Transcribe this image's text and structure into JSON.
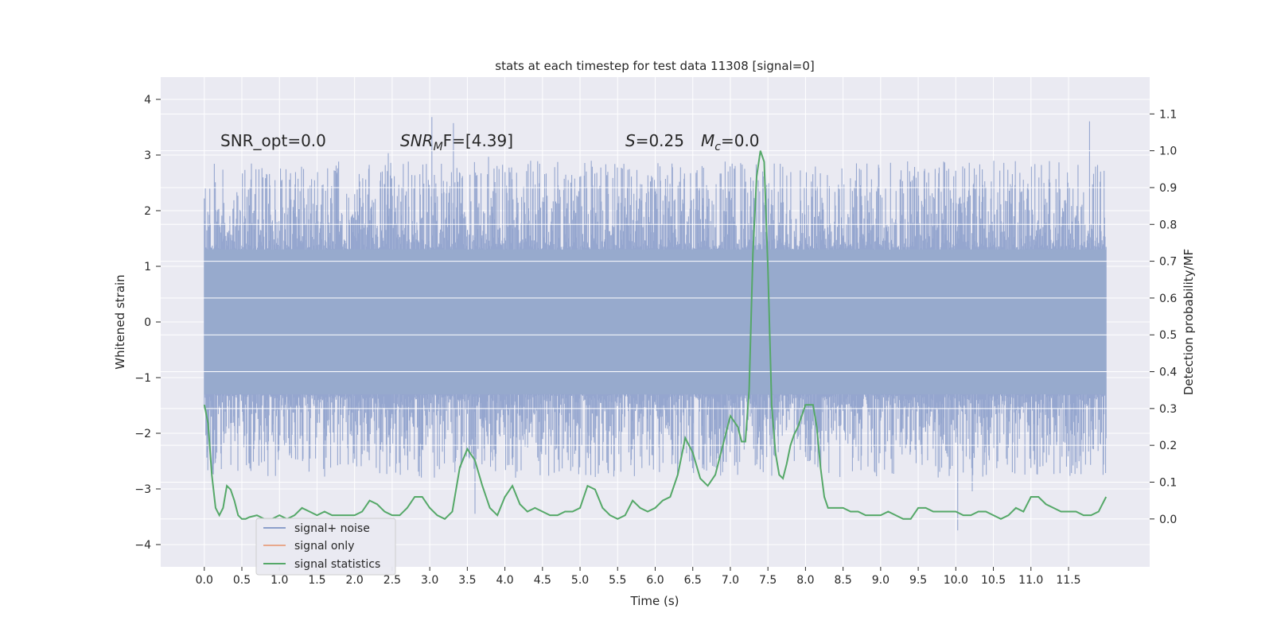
{
  "chart_data": {
    "type": "line",
    "title": "stats at each timestep for test data 11308 [signal=0]",
    "xlabel": "Time (s)",
    "ylabel": "Whitened strain",
    "y2label": "Detection probability/MF",
    "xlim": [
      -0.58,
      12.58
    ],
    "ylim": [
      -4.4,
      4.4
    ],
    "y2lim": [
      -0.13,
      1.2
    ],
    "x_ticks": [
      "0.0",
      "0.5",
      "1.0",
      "1.5",
      "2.0",
      "2.5",
      "3.0",
      "3.5",
      "4.0",
      "4.5",
      "5.0",
      "5.5",
      "6.0",
      "6.5",
      "7.0",
      "7.5",
      "8.0",
      "8.5",
      "9.0",
      "9.5",
      "10.0",
      "10.5",
      "11.0",
      "11.5"
    ],
    "y_ticks": [
      "4",
      "3",
      "2",
      "1",
      "0",
      "−1",
      "−2",
      "−3",
      "−4"
    ],
    "y2_ticks": [
      "1.1",
      "1.0",
      "0.9",
      "0.8",
      "0.7",
      "0.6",
      "0.5",
      "0.4",
      "0.3",
      "0.2",
      "0.1",
      "0.0"
    ],
    "grid": true,
    "legend_position": "lower-left",
    "annotations": {
      "snr_opt": "SNR_opt=0.0",
      "snr_mf_main": "SNR",
      "snr_mf_sub": "M",
      "snr_mf_rest": "F=[4.39]",
      "s_main": "S",
      "s_rest": "=0.25",
      "mc_main": "M",
      "mc_sub": "c",
      "mc_rest": "=0.0"
    },
    "series": [
      {
        "name": "signal+ noise",
        "color": "#8c9fcb",
        "x_range": [
          0.0,
          12.0
        ],
        "envelope": {
          "dense_band": [
            -1.3,
            1.3
          ],
          "typical_extremes": [
            -2.8,
            2.9
          ],
          "max": 4.1,
          "min": -4.0
        }
      },
      {
        "name": "signal only",
        "color": "#e8a88c",
        "values": []
      },
      {
        "name": "signal statistics",
        "color": "#55a868",
        "axis": "right",
        "x": [
          0.0,
          0.05,
          0.1,
          0.15,
          0.2,
          0.25,
          0.3,
          0.35,
          0.4,
          0.45,
          0.5,
          0.55,
          0.6,
          0.7,
          0.8,
          0.9,
          1.0,
          1.1,
          1.2,
          1.3,
          1.4,
          1.5,
          1.6,
          1.7,
          1.8,
          1.9,
          2.0,
          2.1,
          2.2,
          2.3,
          2.4,
          2.5,
          2.6,
          2.7,
          2.8,
          2.9,
          3.0,
          3.1,
          3.2,
          3.3,
          3.4,
          3.5,
          3.6,
          3.7,
          3.8,
          3.9,
          4.0,
          4.1,
          4.2,
          4.3,
          4.4,
          4.5,
          4.6,
          4.7,
          4.8,
          4.9,
          5.0,
          5.1,
          5.2,
          5.3,
          5.4,
          5.5,
          5.6,
          5.7,
          5.8,
          5.9,
          6.0,
          6.1,
          6.2,
          6.3,
          6.4,
          6.5,
          6.6,
          6.7,
          6.8,
          6.9,
          7.0,
          7.1,
          7.15,
          7.2,
          7.25,
          7.3,
          7.35,
          7.4,
          7.45,
          7.5,
          7.55,
          7.6,
          7.65,
          7.7,
          7.75,
          7.8,
          7.85,
          7.9,
          8.0,
          8.1,
          8.15,
          8.2,
          8.25,
          8.3,
          8.4,
          8.5,
          8.6,
          8.7,
          8.8,
          8.9,
          9.0,
          9.1,
          9.2,
          9.3,
          9.4,
          9.5,
          9.6,
          9.7,
          9.8,
          9.9,
          10.0,
          10.1,
          10.2,
          10.3,
          10.4,
          10.5,
          10.6,
          10.7,
          10.8,
          10.9,
          11.0,
          11.1,
          11.2,
          11.3,
          11.4,
          11.5,
          11.6,
          11.7,
          11.8,
          11.9,
          12.0
        ],
        "values": [
          0.31,
          0.26,
          0.12,
          0.03,
          0.01,
          0.03,
          0.09,
          0.08,
          0.05,
          0.01,
          0.0,
          0.0,
          0.005,
          0.01,
          0.0,
          0.0,
          0.01,
          0.0,
          0.01,
          0.03,
          0.02,
          0.01,
          0.02,
          0.01,
          0.01,
          0.01,
          0.01,
          0.02,
          0.05,
          0.04,
          0.02,
          0.01,
          0.01,
          0.03,
          0.06,
          0.06,
          0.03,
          0.01,
          0.0,
          0.02,
          0.14,
          0.19,
          0.16,
          0.09,
          0.03,
          0.01,
          0.06,
          0.09,
          0.04,
          0.02,
          0.03,
          0.02,
          0.01,
          0.01,
          0.02,
          0.02,
          0.03,
          0.09,
          0.08,
          0.03,
          0.01,
          0.0,
          0.01,
          0.05,
          0.03,
          0.02,
          0.03,
          0.05,
          0.06,
          0.12,
          0.22,
          0.18,
          0.11,
          0.09,
          0.12,
          0.2,
          0.28,
          0.25,
          0.21,
          0.21,
          0.35,
          0.72,
          0.93,
          1.0,
          0.97,
          0.68,
          0.31,
          0.18,
          0.12,
          0.11,
          0.15,
          0.2,
          0.23,
          0.25,
          0.31,
          0.31,
          0.25,
          0.14,
          0.06,
          0.03,
          0.03,
          0.03,
          0.02,
          0.02,
          0.01,
          0.01,
          0.01,
          0.02,
          0.01,
          0.0,
          0.0,
          0.03,
          0.03,
          0.02,
          0.02,
          0.02,
          0.02,
          0.01,
          0.01,
          0.02,
          0.02,
          0.01,
          0.0,
          0.01,
          0.03,
          0.02,
          0.06,
          0.06,
          0.04,
          0.03,
          0.02,
          0.02,
          0.02,
          0.01,
          0.01,
          0.02,
          0.06
        ]
      }
    ]
  }
}
